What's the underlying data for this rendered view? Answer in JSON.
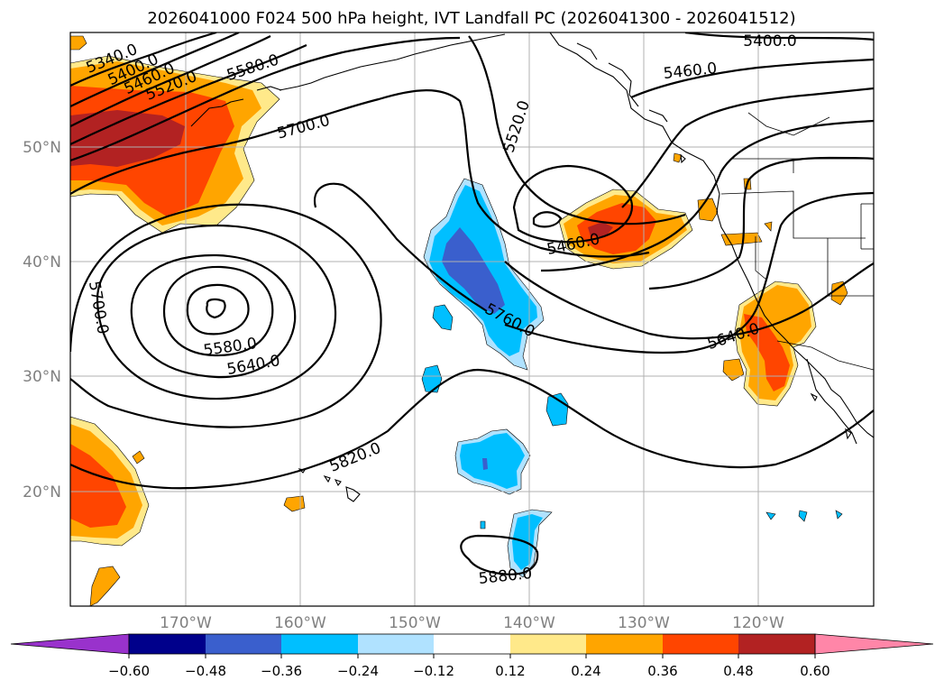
{
  "title": "2026041000 F024 500 hPa height, IVT Landfall PC (2026041300 - 2026041512)",
  "lat_labels": [
    "50°N",
    "40°N",
    "30°N",
    "20°N"
  ],
  "lon_labels": [
    "170°W",
    "160°W",
    "150°W",
    "140°W",
    "130°W",
    "120°W"
  ],
  "colorbar": {
    "ticks": [
      "−0.60",
      "−0.48",
      "−0.36",
      "−0.24",
      "−0.12",
      "0.12",
      "0.24",
      "0.36",
      "0.48",
      "0.60"
    ],
    "colors": [
      "#9932cc",
      "#00008b",
      "#3a5fcd",
      "#00bfff",
      "#b0e2ff",
      "#ffffff",
      "#ffe98a",
      "#ffa500",
      "#ff4500",
      "#b22222",
      "#ff86a8"
    ]
  },
  "contour_labels": [
    "5340.0",
    "5400.0",
    "5460.0",
    "5520.0",
    "5580.0",
    "5700.0",
    "5520.0",
    "5400.0",
    "5460.0",
    "5460.0",
    "5700.0",
    "5580.0",
    "5640.0",
    "5760.0",
    "5640.0",
    "5820.0",
    "5880.0"
  ]
}
